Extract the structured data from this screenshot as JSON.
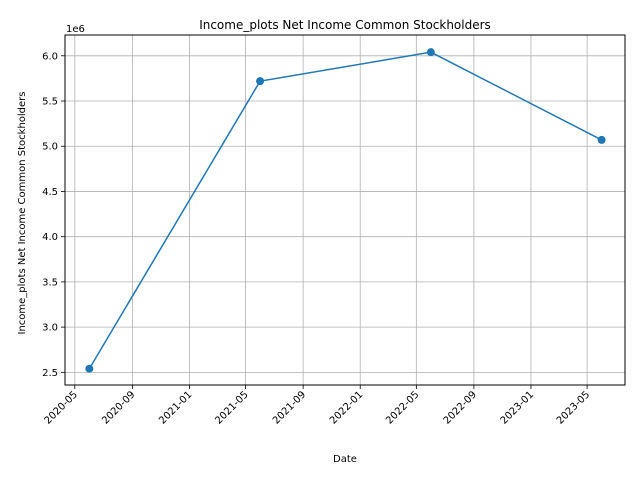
{
  "chart_data": {
    "type": "line",
    "title": "Income_plots Net Income Common Stockholders",
    "xlabel": "Date",
    "ylabel": "Income_plots Net Income Common Stockholders",
    "y_multiplier_label": "1e6",
    "x": [
      "2020-06-01",
      "2021-06-01",
      "2022-06-01",
      "2023-06-01"
    ],
    "y": [
      2540000,
      5720000,
      6040000,
      5070000
    ],
    "xlim": [
      "2020-04-10",
      "2023-07-21"
    ],
    "ylim": [
      2360000,
      6230000
    ],
    "x_ticks": [
      "2020-05",
      "2020-09",
      "2021-01",
      "2021-05",
      "2021-09",
      "2022-01",
      "2022-05",
      "2022-09",
      "2023-01",
      "2023-05"
    ],
    "y_ticks": [
      "2.5",
      "3.0",
      "3.5",
      "4.0",
      "4.5",
      "5.0",
      "5.5",
      "6.0"
    ],
    "grid": true,
    "line_color": "#1f77b4"
  }
}
